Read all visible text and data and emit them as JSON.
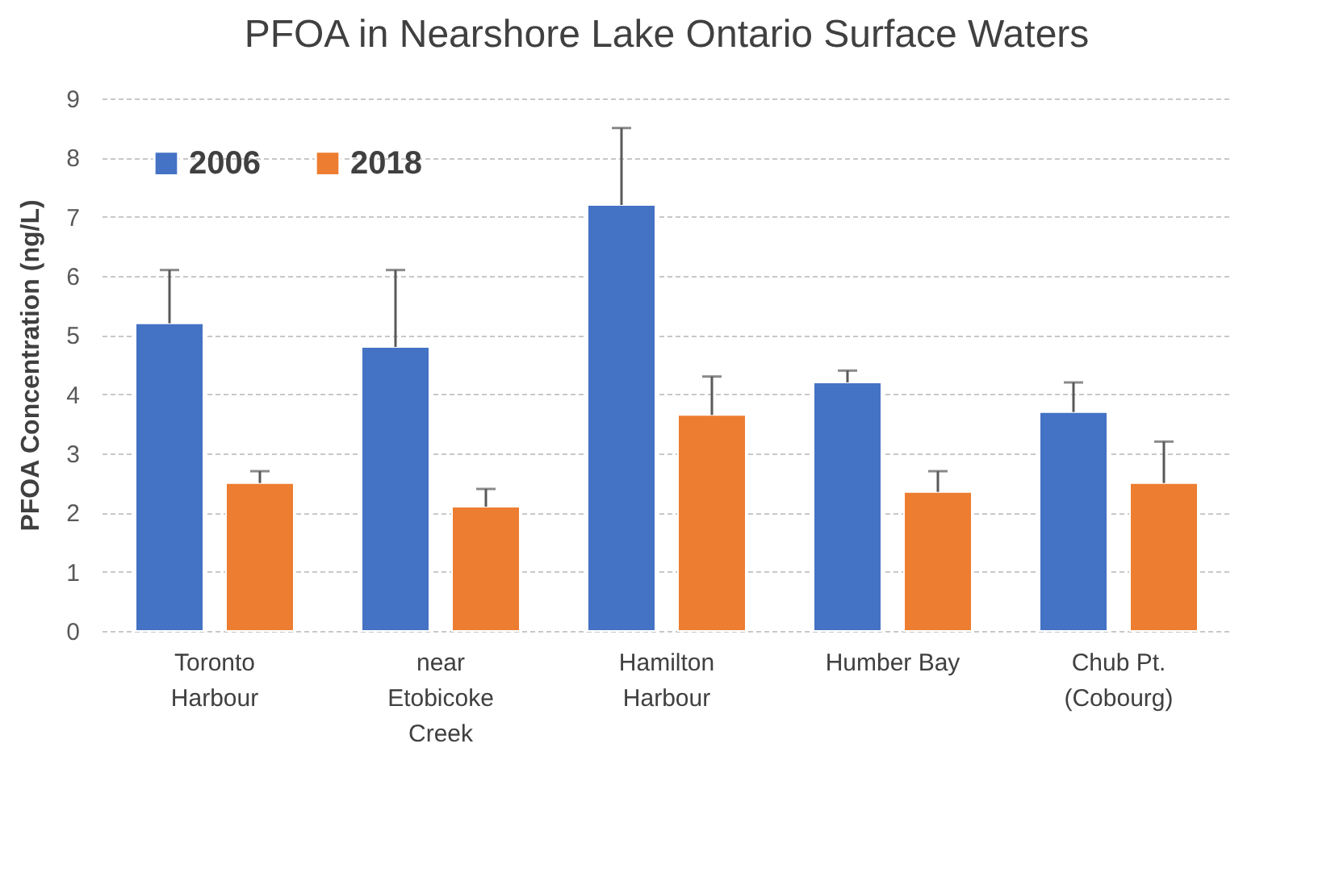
{
  "chart_data": {
    "type": "bar",
    "title": "PFOA in Nearshore Lake Ontario Surface Waters",
    "ylabel": "PFOA Concentration (ng/L)",
    "categories": [
      "Toronto Harbour",
      "near Etobicoke Creek",
      "Hamilton Harbour",
      "Humber Bay",
      "Chub Pt. (Cobourg)"
    ],
    "series": [
      {
        "name": "2006",
        "color": "#4472c4",
        "values": [
          5.2,
          4.8,
          7.2,
          4.2,
          3.7
        ],
        "errors": [
          [
            5.2,
            6.1
          ],
          [
            4.8,
            6.1
          ],
          [
            7.2,
            8.5
          ],
          [
            4.2,
            4.4
          ],
          [
            3.7,
            4.2
          ]
        ]
      },
      {
        "name": "2018",
        "color": "#ed7d31",
        "values": [
          2.5,
          2.1,
          3.65,
          2.35,
          2.5
        ],
        "errors": [
          [
            2.5,
            2.7
          ],
          [
            2.1,
            2.4
          ],
          [
            3.65,
            4.3
          ],
          [
            2.35,
            2.7
          ],
          [
            2.5,
            3.2
          ]
        ]
      }
    ],
    "ylim": [
      0,
      9
    ],
    "yticks": [
      0,
      1,
      2,
      3,
      4,
      5,
      6,
      7,
      8,
      9
    ],
    "grid": "y",
    "legend": "top left"
  }
}
